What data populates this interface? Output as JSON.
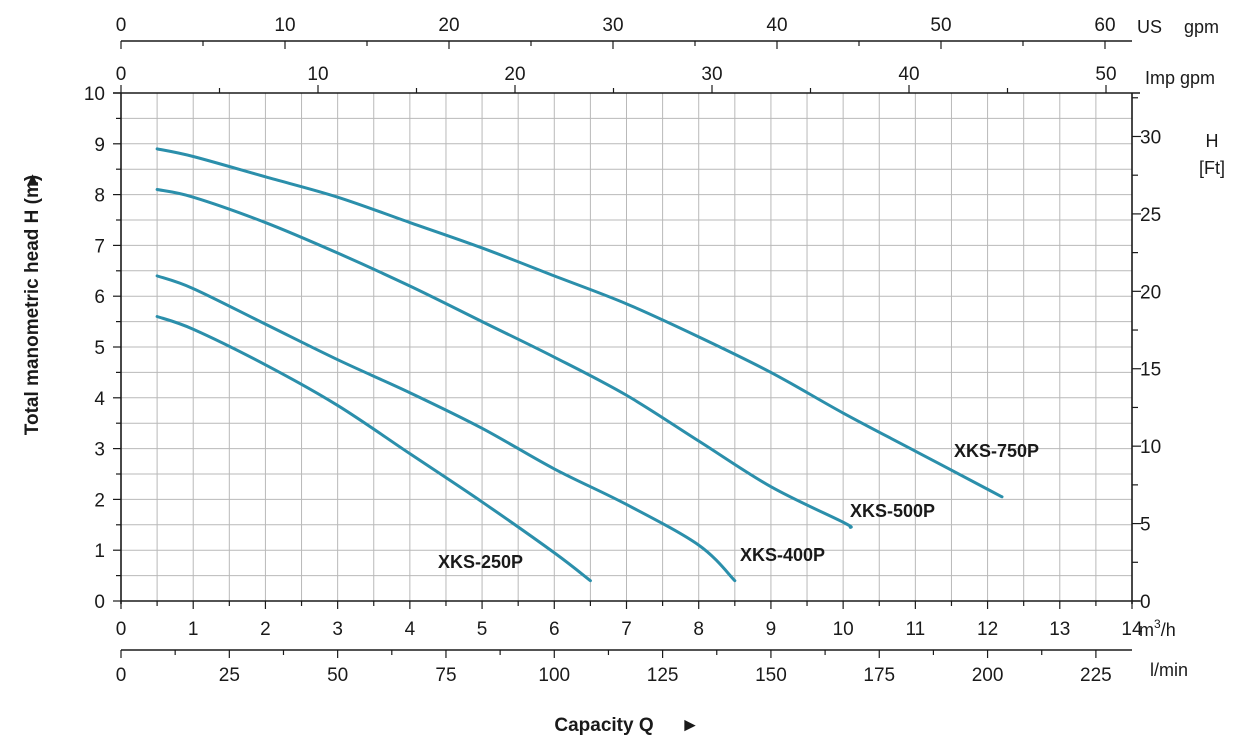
{
  "chart_data": {
    "type": "line",
    "title": "",
    "xlabel": "Capacity Q",
    "xlabel_arrow": "►",
    "ylabel": "Total manometric head H (m)",
    "ylabel_arrow": "►",
    "xlim": [
      0,
      14
    ],
    "ylim": [
      0,
      10
    ],
    "grid": true,
    "line_color": "#2b8fab",
    "x_unit": "m³/h",
    "x_unit_base": "m",
    "x_unit_sup": "3",
    "x_unit_tail": "/h",
    "x_ticks": [
      0,
      1,
      2,
      3,
      4,
      5,
      6,
      7,
      8,
      9,
      10,
      11,
      12,
      13,
      14
    ],
    "y_ticks": [
      0,
      1,
      2,
      3,
      4,
      5,
      6,
      7,
      8,
      9,
      10
    ],
    "secondary_axes": {
      "us_gpm": {
        "label_parts": [
          "US",
          "gpm"
        ],
        "ticks": [
          0,
          10,
          20,
          30,
          40,
          50,
          60
        ],
        "factor": 0.2271
      },
      "imp_gpm": {
        "label": "Imp gpm",
        "ticks": [
          0,
          10,
          20,
          30,
          40,
          50
        ],
        "factor": 0.2728
      },
      "l_min": {
        "label": "l/min",
        "ticks": [
          0,
          25,
          50,
          75,
          100,
          125,
          150,
          175,
          200,
          225
        ],
        "factor": 0.06
      },
      "feet": {
        "label_top": "H",
        "label_bottom": "[Ft]",
        "ticks": [
          0,
          5,
          10,
          15,
          20,
          25,
          30
        ],
        "factor": 0.3048
      }
    },
    "series": [
      {
        "name": "XKS-250P",
        "x": [
          0.5,
          1,
          2,
          3,
          4,
          5,
          6,
          6.5
        ],
        "y": [
          5.6,
          5.35,
          4.65,
          3.85,
          2.9,
          1.95,
          0.95,
          0.4
        ]
      },
      {
        "name": "XKS-400P",
        "x": [
          0.5,
          1,
          2,
          3,
          4,
          5,
          6,
          7,
          8,
          8.5
        ],
        "y": [
          6.4,
          6.15,
          5.45,
          4.75,
          4.1,
          3.4,
          2.6,
          1.9,
          1.1,
          0.4
        ]
      },
      {
        "name": "XKS-500P",
        "x": [
          0.5,
          1,
          2,
          3,
          4,
          5,
          6,
          7,
          8,
          9,
          10,
          10.1
        ],
        "y": [
          8.1,
          7.95,
          7.45,
          6.85,
          6.2,
          5.5,
          4.8,
          4.05,
          3.15,
          2.25,
          1.55,
          1.45
        ]
      },
      {
        "name": "XKS-750P",
        "x": [
          0.5,
          1,
          2,
          3,
          4,
          5,
          6,
          7,
          8,
          9,
          10,
          11,
          12,
          12.2
        ],
        "y": [
          8.9,
          8.75,
          8.35,
          7.95,
          7.45,
          6.95,
          6.4,
          5.85,
          5.2,
          4.5,
          3.7,
          2.95,
          2.2,
          2.05
        ]
      }
    ]
  }
}
